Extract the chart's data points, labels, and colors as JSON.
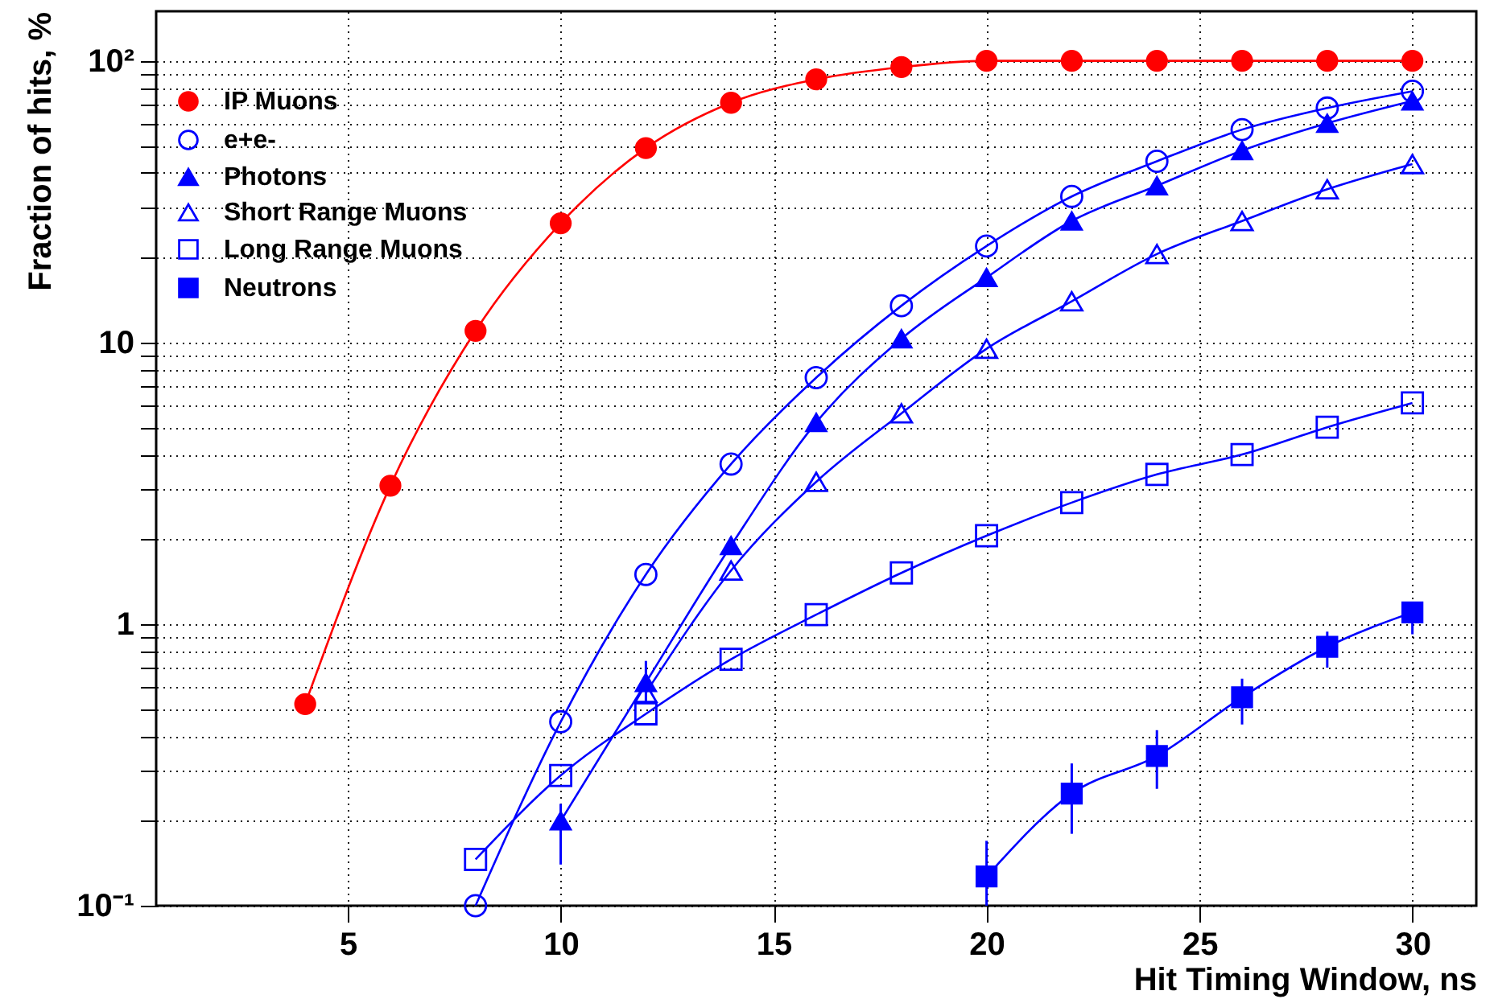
{
  "chart_data": {
    "type": "line",
    "xlabel": "Hit Timing Window, ns",
    "ylabel": "Fraction of hits, %",
    "x": [
      4,
      6,
      8,
      10,
      12,
      14,
      16,
      18,
      20,
      22,
      24,
      26,
      28,
      30
    ],
    "xlim": [
      0.5,
      31.5
    ],
    "xticks": [
      5,
      10,
      15,
      20,
      25,
      30
    ],
    "ylim": [
      0.1,
      150
    ],
    "log": "y",
    "grid": true,
    "legend": "top left",
    "line_style": "solid",
    "yticks": [
      {
        "value": 0.1,
        "label": "10⁻¹"
      },
      {
        "value": 0.2,
        "label": null
      },
      {
        "value": 0.3,
        "label": null
      },
      {
        "value": 0.4,
        "label": null
      },
      {
        "value": 0.5,
        "label": null
      },
      {
        "value": 0.6,
        "label": null
      },
      {
        "value": 0.7,
        "label": null
      },
      {
        "value": 0.8,
        "label": null
      },
      {
        "value": 0.9,
        "label": null
      },
      1,
      {
        "value": 2,
        "label": null
      },
      {
        "value": 3,
        "label": null
      },
      {
        "value": 4,
        "label": null
      },
      {
        "value": 5,
        "label": null
      },
      {
        "value": 6,
        "label": null
      },
      {
        "value": 7,
        "label": null
      },
      {
        "value": 8,
        "label": null
      },
      {
        "value": 9,
        "label": null
      },
      10,
      {
        "value": 20,
        "label": null
      },
      {
        "value": 30,
        "label": null
      },
      {
        "value": 40,
        "label": null
      },
      {
        "value": 50,
        "label": null
      },
      {
        "value": 60,
        "label": null
      },
      {
        "value": 70,
        "label": null
      },
      {
        "value": 80,
        "label": null
      },
      {
        "value": 90,
        "label": null
      },
      {
        "value": 100,
        "label": "10²"
      }
    ],
    "series": [
      {
        "name": "IP Muons",
        "color": "#ff0000",
        "marker": "circle",
        "values": [
          0.52,
          3.1,
          11,
          26.5,
          49,
          71,
          86,
          95,
          100,
          100,
          100,
          100,
          100,
          100
        ]
      },
      {
        "name": "e+e-",
        "color": "#0000ff",
        "marker": "circle",
        "values": [
          null,
          null,
          0.1,
          0.45,
          1.5,
          3.7,
          7.5,
          13.5,
          22,
          33,
          44,
          57,
          68,
          78
        ]
      },
      {
        "name": "Photons",
        "color": "#0000ff",
        "marker": "triangle",
        "values": [
          null,
          null,
          null,
          0.2,
          0.62,
          1.9,
          5.2,
          10.3,
          17,
          27,
          36,
          48,
          60,
          72
        ],
        "errors": [
          null,
          null,
          null,
          [
            0.14,
            0.23
          ],
          [
            0.53,
            0.74
          ],
          null,
          null,
          null,
          null,
          null,
          null,
          null,
          null,
          null
        ]
      },
      {
        "name": "Short Range Muons",
        "color": "#0000ff",
        "marker": "triangle",
        "values": [
          null,
          null,
          null,
          null,
          0.57,
          1.55,
          3.2,
          5.6,
          9.5,
          14,
          20.6,
          27,
          35,
          43
        ]
      },
      {
        "name": "Long Range Muons",
        "color": "#0000ff",
        "marker": "square",
        "values": [
          null,
          null,
          0.146,
          0.29,
          0.48,
          0.75,
          1.08,
          1.52,
          2.06,
          2.7,
          3.4,
          4.0,
          5.0,
          6.1
        ]
      },
      {
        "name": "Neutrons",
        "color": "#0000ff",
        "marker": "square",
        "values": [
          null,
          null,
          null,
          null,
          null,
          null,
          null,
          null,
          0.127,
          0.25,
          0.34,
          0.55,
          0.83,
          1.1
        ],
        "errors": [
          null,
          null,
          null,
          null,
          null,
          null,
          null,
          null,
          [
            0.1,
            0.17
          ],
          [
            0.18,
            0.32
          ],
          [
            0.26,
            0.42
          ],
          [
            0.44,
            0.64
          ],
          [
            0.7,
            0.94
          ],
          [
            0.92,
            1.2
          ]
        ]
      }
    ]
  }
}
